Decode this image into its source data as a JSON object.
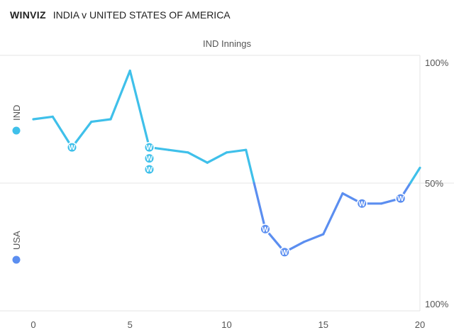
{
  "header": {
    "brand": "WINVIZ",
    "match": "INDIA v UNITED STATES OF AMERICA"
  },
  "chart_data": {
    "type": "line",
    "title": "IND Innings",
    "xlim": [
      0,
      20
    ],
    "x_ticks": [
      "0",
      "5",
      "10",
      "15",
      "20"
    ],
    "y_labels": {
      "top": "100%",
      "middle": "50%",
      "bottom": "100%"
    },
    "teams": [
      {
        "name": "IND",
        "color": "#3fc0ea"
      },
      {
        "name": "USA",
        "color": "#5b8ef0"
      }
    ],
    "series": [
      {
        "x": [
          0,
          1,
          2,
          3,
          4,
          5,
          6,
          7,
          8,
          9,
          10,
          11,
          12,
          13,
          14,
          15,
          16,
          17,
          18,
          19,
          20
        ],
        "y": [
          75,
          76,
          64,
          74,
          75,
          94,
          64,
          63,
          62,
          58,
          62,
          63,
          32,
          23,
          27,
          30,
          46,
          42,
          42,
          44,
          56
        ]
      }
    ],
    "wickets": [
      {
        "over": 2,
        "count": 1
      },
      {
        "over": 6,
        "count": 3
      },
      {
        "over": 12,
        "count": 1
      },
      {
        "over": 13,
        "count": 1
      },
      {
        "over": 17,
        "count": 1
      },
      {
        "over": 19,
        "count": 1
      }
    ],
    "wicket_label": "W",
    "grid": true
  }
}
